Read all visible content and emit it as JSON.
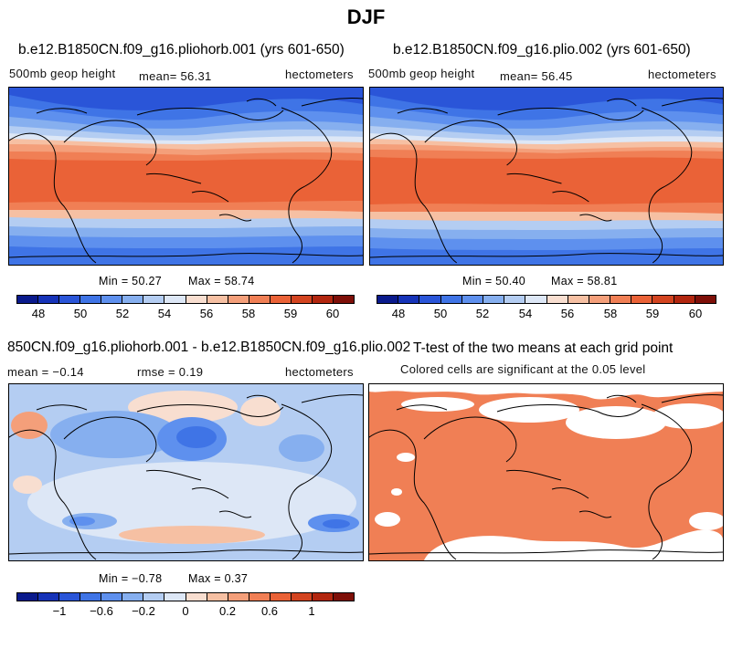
{
  "figure_title": "DJF",
  "palette": [
    "#0a1a8c",
    "#1633b8",
    "#2a55d8",
    "#3f74e6",
    "#5e90ee",
    "#86afef",
    "#b4cdf2",
    "#dde7f6",
    "#f8ded0",
    "#f6c0a3",
    "#f49f7a",
    "#f07f55",
    "#ea6237",
    "#d34420",
    "#b2260f",
    "#7e0f08"
  ],
  "panels": [
    {
      "title": "b.e12.B1850CN.f09_g16.pliohorb.001 (yrs 601-650)",
      "left_label": "500mb geop height",
      "center_label": "mean=  56.31",
      "right_label": "hectometers",
      "min_label": "Min =  50.27",
      "max_label": "Max =  58.74",
      "ticks": [
        "48",
        "50",
        "52",
        "54",
        "56",
        "58",
        "59",
        "60"
      ]
    },
    {
      "title": "b.e12.B1850CN.f09_g16.plio.002 (yrs 601-650)",
      "left_label": "500mb geop height",
      "center_label": "mean=  56.45",
      "right_label": "hectometers",
      "min_label": "Min =  50.40",
      "max_label": "Max =  58.81",
      "ticks": [
        "48",
        "50",
        "52",
        "54",
        "56",
        "58",
        "59",
        "60"
      ]
    },
    {
      "title": "850CN.f09_g16.pliohorb.001 - b.e12.B1850CN.f09_g16.plio.002",
      "left_label": "mean =  −0.14",
      "center_label": "rmse =   0.19",
      "right_label": "hectometers",
      "min_label": "Min =  −0.78",
      "max_label": "Max =   0.37",
      "ticks": [
        "−1",
        "−0.6",
        "−0.2",
        "0",
        "0.2",
        "0.6",
        "1"
      ]
    },
    {
      "title": "T-test of the two means at each grid point",
      "subtitle": "Colored cells are significant at the 0.05 level"
    }
  ],
  "chart_data": [
    {
      "type": "heatmap",
      "title": "b.e12.B1850CN.f09_g16.pliohorb.001 (yrs 601-650)",
      "variable": "500mb geop height",
      "units": "hectometers",
      "mean": 56.31,
      "min": 50.27,
      "max": 58.74,
      "colorbar_levels": [
        48,
        50,
        52,
        54,
        56,
        58,
        59,
        60
      ]
    },
    {
      "type": "heatmap",
      "title": "b.e12.B1850CN.f09_g16.plio.002 (yrs 601-650)",
      "variable": "500mb geop height",
      "units": "hectometers",
      "mean": 56.45,
      "min": 50.4,
      "max": 58.81,
      "colorbar_levels": [
        48,
        50,
        52,
        54,
        56,
        58,
        59,
        60
      ]
    },
    {
      "type": "heatmap",
      "title": "850CN.f09_g16.pliohorb.001 - b.e12.B1850CN.f09_g16.plio.002",
      "units": "hectometers",
      "mean": -0.14,
      "rmse": 0.19,
      "min": -0.78,
      "max": 0.37,
      "colorbar_levels": [
        -1,
        -0.6,
        -0.2,
        0,
        0.2,
        0.6,
        1
      ]
    },
    {
      "type": "heatmap",
      "title": "T-test of the two means at each grid point",
      "note": "Colored cells are significant at the 0.05 level"
    }
  ]
}
